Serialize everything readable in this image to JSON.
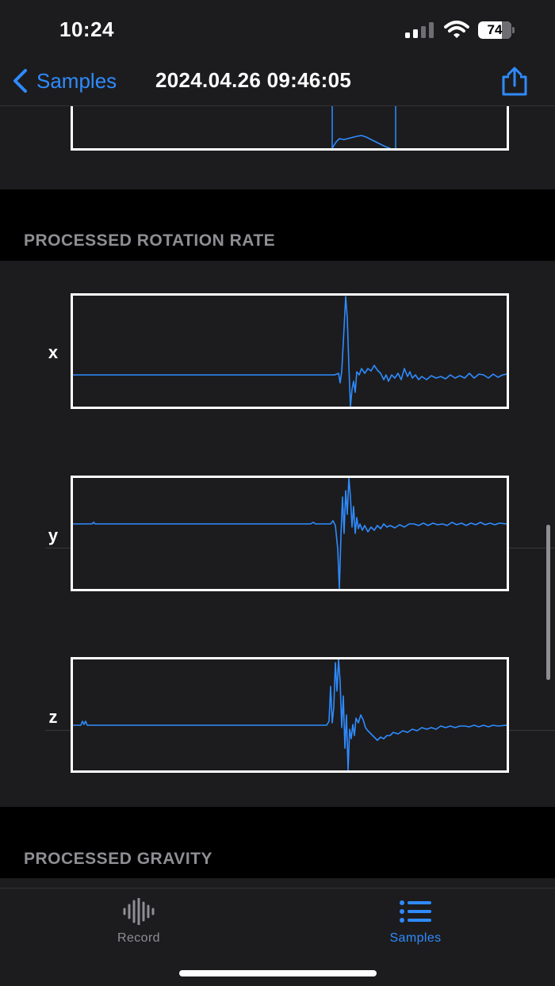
{
  "status_bar": {
    "time": "10:24",
    "battery_level": "74"
  },
  "nav": {
    "back_label": "Samples",
    "title": "2024.04.26 09:46:05"
  },
  "sections": {
    "rotation_header": "PROCESSED ROTATION RATE",
    "gravity_header": "PROCESSED GRAVITY"
  },
  "rotation_rows": [
    {
      "axis": "x"
    },
    {
      "axis": "y"
    },
    {
      "axis": "z"
    }
  ],
  "tabs": [
    {
      "label": "Record",
      "icon": "waveform-icon",
      "selected": false
    },
    {
      "label": "Samples",
      "icon": "list-icon",
      "selected": true
    }
  ],
  "colors": {
    "accent": "#2f8bff",
    "background": "#000000",
    "cell": "#1c1c1e",
    "plot_border": "#ffffff"
  }
}
